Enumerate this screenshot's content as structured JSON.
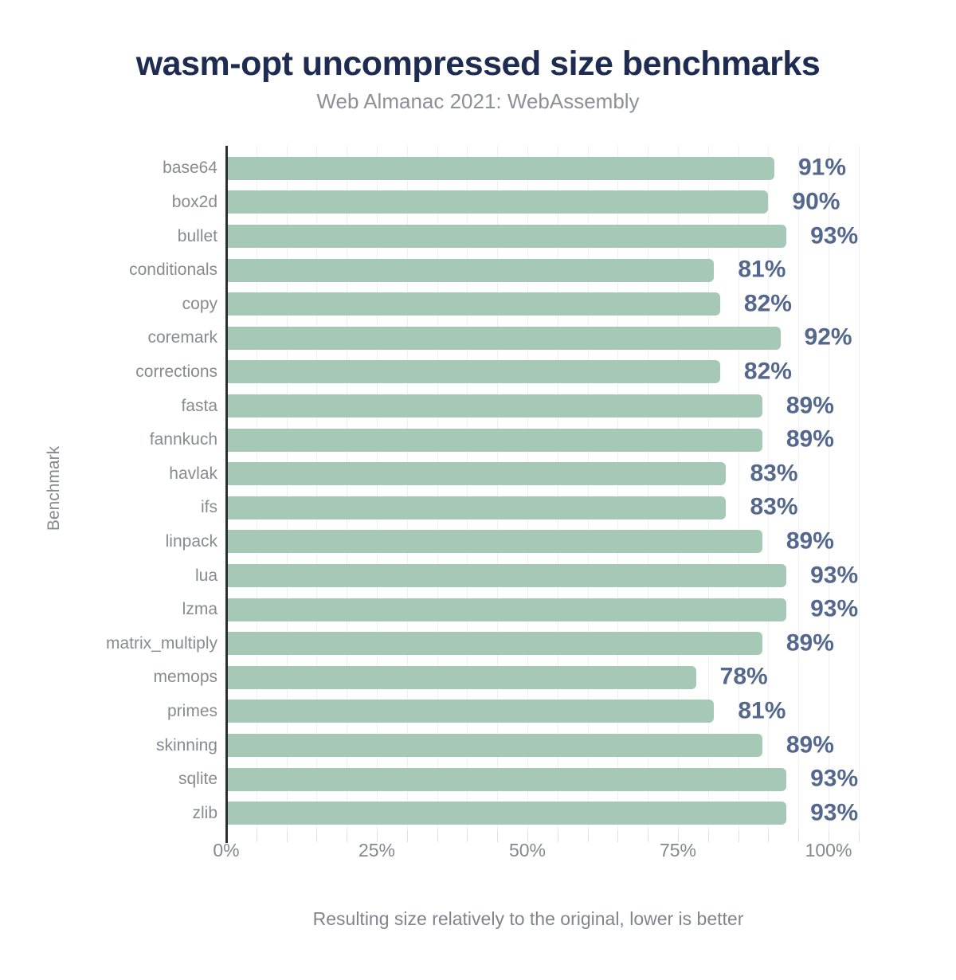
{
  "header": {
    "title": "wasm-opt uncompressed size benchmarks",
    "subtitle": "Web Almanac 2021: WebAssembly"
  },
  "chart_data": {
    "type": "bar",
    "orientation": "horizontal",
    "title": "wasm-opt uncompressed size benchmarks",
    "subtitle": "Web Almanac 2021: WebAssembly",
    "categories": [
      "base64",
      "box2d",
      "bullet",
      "conditionals",
      "copy",
      "coremark",
      "corrections",
      "fasta",
      "fannkuch",
      "havlak",
      "ifs",
      "linpack",
      "lua",
      "lzma",
      "matrix_multiply",
      "memops",
      "primes",
      "skinning",
      "sqlite",
      "zlib"
    ],
    "values": [
      91,
      90,
      93,
      81,
      82,
      92,
      82,
      89,
      89,
      83,
      83,
      89,
      93,
      93,
      89,
      78,
      81,
      89,
      93,
      93
    ],
    "value_suffix": "%",
    "xlabel": "Resulting size relatively to the original, lower is better",
    "ylabel": "Benchmark",
    "x_ticks": [
      {
        "value": 0,
        "label": "0%"
      },
      {
        "value": 25,
        "label": "25%"
      },
      {
        "value": 50,
        "label": "50%"
      },
      {
        "value": 75,
        "label": "75%"
      },
      {
        "value": 100,
        "label": "100%"
      }
    ],
    "xlim": [
      0,
      108
    ],
    "grid": "vertical minor gridlines every 5%, faint",
    "legend": "none"
  },
  "colors": {
    "background": "#ffffff",
    "title": "#1e2c52",
    "subtitle": "#8b9198",
    "bar": "#a6c9b7",
    "value_label": "#54678d",
    "axis_text": "#85898f",
    "axis_line": "#2b2e33",
    "gridline": "#f0f0f4"
  }
}
